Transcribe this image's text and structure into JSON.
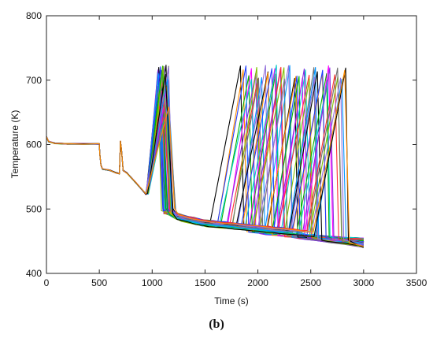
{
  "panel_caption": "(b)",
  "chart_data": {
    "type": "line",
    "title": "",
    "xlabel": "Time (s)",
    "ylabel": "Temperature (K)",
    "xlim": [
      0,
      3500
    ],
    "ylim": [
      400,
      800
    ],
    "xticks": [
      0,
      500,
      1000,
      1500,
      2000,
      2500,
      3000,
      3500
    ],
    "yticks": [
      400,
      500,
      600,
      700,
      800
    ],
    "grid": false,
    "legend": "none",
    "ensemble_size": 50,
    "series_colors": [
      "#000000",
      "#ff8c00",
      "#1e3cff",
      "#00b400",
      "#ff00ff",
      "#00c8c8",
      "#8a2be2",
      "#ff3030",
      "#7fbf00",
      "#707070",
      "#0096ff",
      "#9370db"
    ],
    "common_path": {
      "x": [
        0,
        20,
        80,
        200,
        350,
        500,
        505,
        515,
        530,
        600,
        660,
        690,
        700,
        710,
        725,
        760,
        840,
        920,
        940
      ],
      "y": [
        612,
        605,
        602,
        601,
        601,
        601,
        585,
        568,
        562,
        560,
        556,
        555,
        605,
        592,
        560,
        556,
        542,
        527,
        523
      ]
    },
    "first_peak": {
      "time_range": [
        1050,
        1160
      ],
      "temperature_range": [
        658,
        725
      ]
    },
    "post_drop_decay": {
      "x": [
        1170,
        1250,
        1500,
        2000,
        2500,
        3000
      ],
      "y": [
        495,
        487,
        478,
        470,
        462,
        455
      ]
    },
    "second_peak": {
      "time_range": [
        1840,
        2840
      ],
      "temperature_range": [
        700,
        724
      ]
    },
    "final_temperature_range": [
      440,
      455
    ]
  }
}
